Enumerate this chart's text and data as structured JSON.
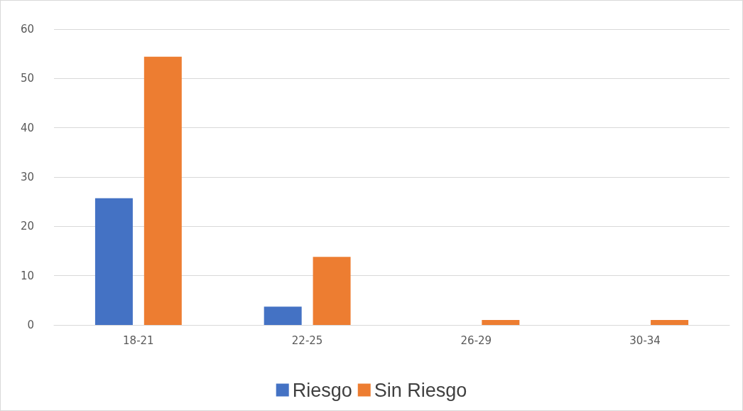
{
  "chart_data": {
    "type": "bar",
    "categories": [
      "18-21",
      "22-25",
      "26-29",
      "30-34"
    ],
    "series": [
      {
        "name": "Riesgo",
        "color": "#4472c4",
        "values": [
          25.7,
          3.7,
          0,
          0
        ]
      },
      {
        "name": "Sin Riesgo",
        "color": "#ed7d31",
        "values": [
          54.4,
          13.8,
          1.0,
          1.0
        ]
      }
    ],
    "ylim": [
      0,
      60
    ],
    "yticks": [
      0,
      10,
      20,
      30,
      40,
      50,
      60
    ],
    "grid": "y",
    "legend": "bottom"
  }
}
